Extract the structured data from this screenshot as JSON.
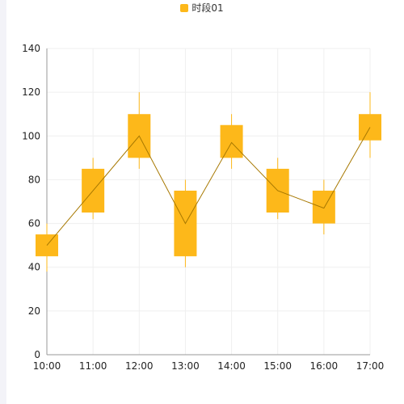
{
  "chart_data": {
    "type": "candlestick",
    "legend": {
      "label": "时段01",
      "position": "top-center"
    },
    "colors": {
      "body": "#FDB81A",
      "wick": "#FDB81A",
      "line": "#A77800",
      "grid": "#EFEFEF",
      "axis": "#999999",
      "left_strip": "#F3F3F8"
    },
    "x": [
      "10:00",
      "11:00",
      "12:00",
      "13:00",
      "14:00",
      "15:00",
      "16:00",
      "17:00"
    ],
    "candles": [
      {
        "x": "10:00",
        "open": 45,
        "close": 55,
        "low": 38,
        "high": 60
      },
      {
        "x": "11:00",
        "open": 65,
        "close": 85,
        "low": 62,
        "high": 90
      },
      {
        "x": "12:00",
        "open": 90,
        "close": 110,
        "low": 85,
        "high": 120
      },
      {
        "x": "13:00",
        "open": 45,
        "close": 75,
        "low": 40,
        "high": 80
      },
      {
        "x": "14:00",
        "open": 90,
        "close": 105,
        "low": 85,
        "high": 110
      },
      {
        "x": "15:00",
        "open": 65,
        "close": 85,
        "low": 62,
        "high": 90
      },
      {
        "x": "16:00",
        "open": 60,
        "close": 75,
        "low": 55,
        "high": 80
      },
      {
        "x": "17:00",
        "open": 98,
        "close": 110,
        "low": 90,
        "high": 120
      }
    ],
    "line_values": [
      50,
      75,
      100,
      60,
      97,
      75,
      67,
      104
    ],
    "yticks": [
      0,
      20,
      40,
      60,
      80,
      100,
      120,
      140
    ],
    "ylim": [
      0,
      140
    ],
    "grid": true,
    "title": "",
    "xlabel": "",
    "ylabel": ""
  }
}
